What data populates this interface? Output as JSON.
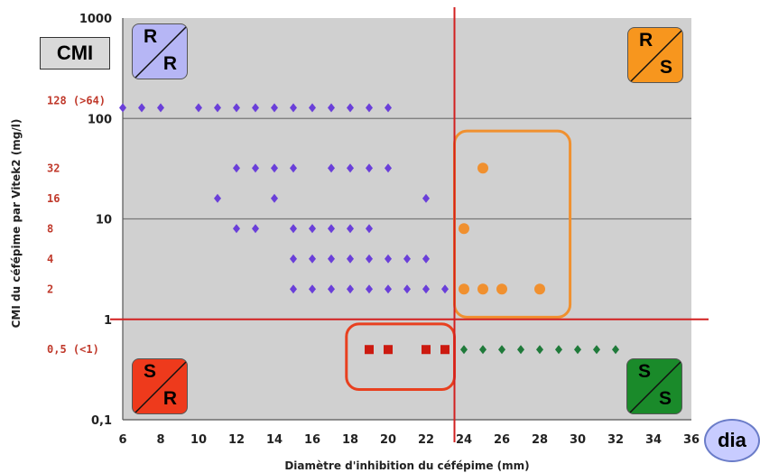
{
  "chart_data": {
    "type": "scatter",
    "title": "",
    "xlabel": "Diamètre d'inhibition du céfépime (mm)",
    "ylabel": "CMI du céfépime par Vitek2 (mg/l)",
    "x_scale": "linear",
    "y_scale": "log",
    "xlim": [
      6,
      36
    ],
    "ylim": [
      0.1,
      1000
    ],
    "x_ticks": [
      "6",
      "8",
      "10",
      "12",
      "14",
      "16",
      "18",
      "20",
      "22",
      "24",
      "26",
      "28",
      "30",
      "32",
      "34",
      "36"
    ],
    "y_ticks": [
      "0,1",
      "1",
      "10",
      "100",
      "1000"
    ],
    "y_category_labels": [
      {
        "label": "128 (>64)",
        "value": 128
      },
      {
        "label": "32",
        "value": 32
      },
      {
        "label": "16",
        "value": 16
      },
      {
        "label": "8",
        "value": 8
      },
      {
        "label": "4",
        "value": 4
      },
      {
        "label": "2",
        "value": 2
      },
      {
        "label": "0,5 (<1)",
        "value": 0.5
      }
    ],
    "breakpoints": {
      "x": 23.5,
      "y": 1
    },
    "grid": "horizontal",
    "colors": {
      "purple": "#6a3fd9",
      "orange": "#f0902f",
      "red": "#cc1a10",
      "green": "#1f7a3a",
      "breakpoint_line": "#d22020",
      "plot_bg": "#d0d0d0"
    },
    "series": [
      {
        "marker": "diamond",
        "color": "purple",
        "points": [
          [
            6,
            128
          ],
          [
            7,
            128
          ],
          [
            8,
            128
          ],
          [
            10,
            128
          ],
          [
            11,
            128
          ],
          [
            12,
            128
          ],
          [
            13,
            128
          ],
          [
            14,
            128
          ],
          [
            15,
            128
          ],
          [
            16,
            128
          ],
          [
            17,
            128
          ],
          [
            18,
            128
          ],
          [
            19,
            128
          ],
          [
            20,
            128
          ],
          [
            12,
            32
          ],
          [
            13,
            32
          ],
          [
            14,
            32
          ],
          [
            15,
            32
          ],
          [
            17,
            32
          ],
          [
            18,
            32
          ],
          [
            19,
            32
          ],
          [
            20,
            32
          ],
          [
            11,
            16
          ],
          [
            14,
            16
          ],
          [
            22,
            16
          ],
          [
            12,
            8
          ],
          [
            13,
            8
          ],
          [
            15,
            8
          ],
          [
            16,
            8
          ],
          [
            17,
            8
          ],
          [
            18,
            8
          ],
          [
            19,
            8
          ],
          [
            15,
            4
          ],
          [
            16,
            4
          ],
          [
            17,
            4
          ],
          [
            18,
            4
          ],
          [
            19,
            4
          ],
          [
            20,
            4
          ],
          [
            21,
            4
          ],
          [
            22,
            4
          ],
          [
            15,
            2
          ],
          [
            16,
            2
          ],
          [
            17,
            2
          ],
          [
            18,
            2
          ],
          [
            19,
            2
          ],
          [
            20,
            2
          ],
          [
            21,
            2
          ],
          [
            22,
            2
          ],
          [
            23,
            2
          ]
        ]
      },
      {
        "marker": "circle",
        "color": "orange",
        "points": [
          [
            25,
            32
          ],
          [
            24,
            8
          ],
          [
            24,
            2
          ],
          [
            25,
            2
          ],
          [
            26,
            2
          ],
          [
            28,
            2
          ]
        ]
      },
      {
        "marker": "square",
        "color": "red",
        "points": [
          [
            19,
            0.5
          ],
          [
            20,
            0.5
          ],
          [
            22,
            0.5
          ],
          [
            23,
            0.5
          ]
        ]
      },
      {
        "marker": "diamond",
        "color": "green",
        "points": [
          [
            24,
            0.5
          ],
          [
            25,
            0.5
          ],
          [
            26,
            0.5
          ],
          [
            27,
            0.5
          ],
          [
            28,
            0.5
          ],
          [
            29,
            0.5
          ],
          [
            30,
            0.5
          ],
          [
            31,
            0.5
          ],
          [
            32,
            0.5
          ]
        ]
      }
    ],
    "highlight_boxes": [
      {
        "color": "orange",
        "x_range": [
          23.5,
          29.6
        ],
        "y_range": [
          1.05,
          75
        ]
      },
      {
        "color": "red",
        "x_range": [
          17.8,
          23.5
        ],
        "y_range": [
          0.2,
          0.9
        ]
      }
    ]
  },
  "quadrant_badges": [
    {
      "id": "rr",
      "top": "R",
      "bottom": "R",
      "color": "#b6b6f5"
    },
    {
      "id": "rs",
      "top": "R",
      "bottom": "S",
      "color": "#f7961e"
    },
    {
      "id": "sr",
      "top": "S",
      "bottom": "R",
      "color": "#ee3a1c"
    },
    {
      "id": "ss",
      "top": "S",
      "bottom": "S",
      "color": "#1a8a2a"
    }
  ],
  "cmi_label": "CMI",
  "dia_label": "dia"
}
